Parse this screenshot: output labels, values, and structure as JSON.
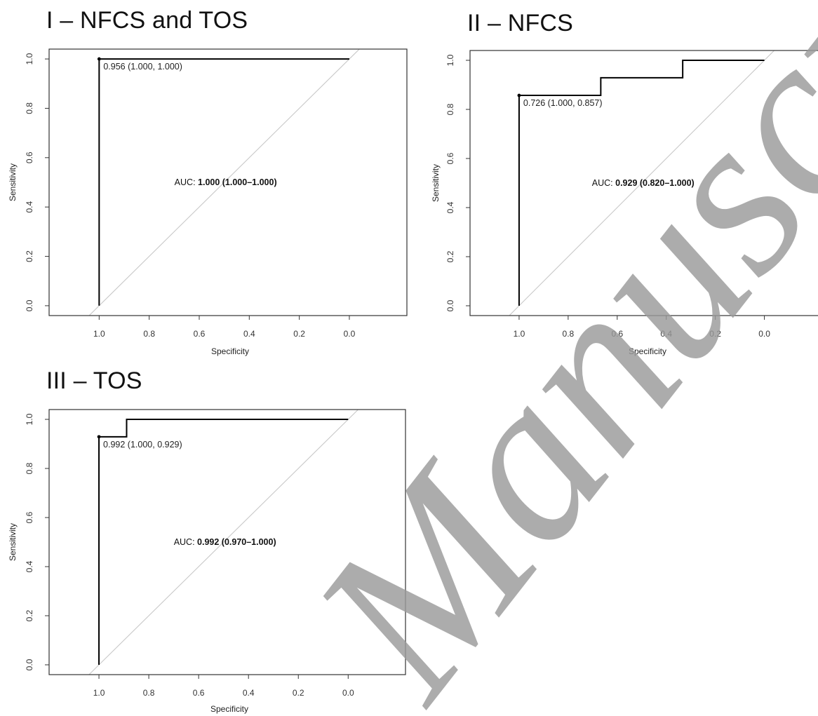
{
  "chart_data": [
    {
      "type": "line",
      "title": "I – NFCS and TOS",
      "xlabel": "Specificity",
      "ylabel": "Sensitivity",
      "xlim": [
        1.2,
        -0.23
      ],
      "ylim": [
        -0.04,
        1.04
      ],
      "x_reversed": true,
      "xticks": [
        1.0,
        0.8,
        0.6,
        0.4,
        0.2,
        0.0
      ],
      "xtick_labels": [
        "1.0",
        "0.8",
        "0.6",
        "0.4",
        "0.2",
        "0.0"
      ],
      "yticks": [
        0.0,
        0.2,
        0.4,
        0.6,
        0.8,
        1.0
      ],
      "ytick_labels": [
        "0.0",
        "0.2",
        "0.4",
        "0.6",
        "0.8",
        "1.0"
      ],
      "series": [
        {
          "x": [
            1.0,
            1.0,
            0.0
          ],
          "y": [
            0.0,
            1.0,
            1.0
          ]
        }
      ],
      "reference_line": {
        "x": [
          1.0,
          0.0
        ],
        "y": [
          0.0,
          1.0
        ],
        "color": "#c8c8c8"
      },
      "threshold_point": {
        "x": 1.0,
        "y": 1.0,
        "label": "0.956 (1.000, 1.000)"
      },
      "auc_annotation": {
        "prefix": "AUC: ",
        "value": "1.000",
        "ci": "(1.000–1.000)",
        "x": 0.5,
        "y": 0.5
      }
    },
    {
      "type": "line",
      "title": "II – NFCS",
      "xlabel": "Specificity",
      "ylabel": "Sensitivity",
      "xlim": [
        1.2,
        -0.23
      ],
      "ylim": [
        -0.04,
        1.04
      ],
      "x_reversed": true,
      "xticks": [
        1.0,
        0.8,
        0.6,
        0.4,
        0.2,
        0.0
      ],
      "xtick_labels": [
        "1.0",
        "0.8",
        "0.6",
        "0.4",
        "0.2",
        "0.0"
      ],
      "yticks": [
        0.0,
        0.2,
        0.4,
        0.6,
        0.8,
        1.0
      ],
      "ytick_labels": [
        "0.0",
        "0.2",
        "0.4",
        "0.6",
        "0.8",
        "1.0"
      ],
      "series": [
        {
          "x": [
            1.0,
            1.0,
            0.667,
            0.667,
            0.333,
            0.333,
            0.0
          ],
          "y": [
            0.0,
            0.857,
            0.857,
            0.929,
            0.929,
            1.0,
            1.0
          ]
        }
      ],
      "reference_line": {
        "x": [
          1.0,
          0.0
        ],
        "y": [
          0.0,
          1.0
        ],
        "color": "#c8c8c8"
      },
      "threshold_point": {
        "x": 1.0,
        "y": 0.857,
        "label": "0.726 (1.000, 0.857)"
      },
      "auc_annotation": {
        "prefix": "AUC: ",
        "value": "0.929",
        "ci": "(0.820–1.000)",
        "x": 0.5,
        "y": 0.5
      }
    },
    {
      "type": "line",
      "title": "III – TOS",
      "xlabel": "Specificity",
      "ylabel": "Sensitivity",
      "xlim": [
        1.2,
        -0.23
      ],
      "ylim": [
        -0.04,
        1.04
      ],
      "x_reversed": true,
      "xticks": [
        1.0,
        0.8,
        0.6,
        0.4,
        0.2,
        0.0
      ],
      "xtick_labels": [
        "1.0",
        "0.8",
        "0.6",
        "0.4",
        "0.2",
        "0.0"
      ],
      "yticks": [
        0.0,
        0.2,
        0.4,
        0.6,
        0.8,
        1.0
      ],
      "ytick_labels": [
        "0.0",
        "0.2",
        "0.4",
        "0.6",
        "0.8",
        "1.0"
      ],
      "series": [
        {
          "x": [
            1.0,
            1.0,
            0.889,
            0.889,
            0.0
          ],
          "y": [
            0.0,
            0.929,
            0.929,
            1.0,
            1.0
          ]
        }
      ],
      "reference_line": {
        "x": [
          1.0,
          0.0
        ],
        "y": [
          0.0,
          1.0
        ],
        "color": "#c8c8c8"
      },
      "threshold_point": {
        "x": 1.0,
        "y": 0.929,
        "label": "0.992 (1.000, 0.929)"
      },
      "auc_annotation": {
        "prefix": "AUC: ",
        "value": "0.992",
        "ci": "(0.970–1.000)",
        "x": 0.5,
        "y": 0.5
      }
    }
  ],
  "watermark": {
    "text": "Manuscript",
    "color": "#9a9a9a"
  }
}
